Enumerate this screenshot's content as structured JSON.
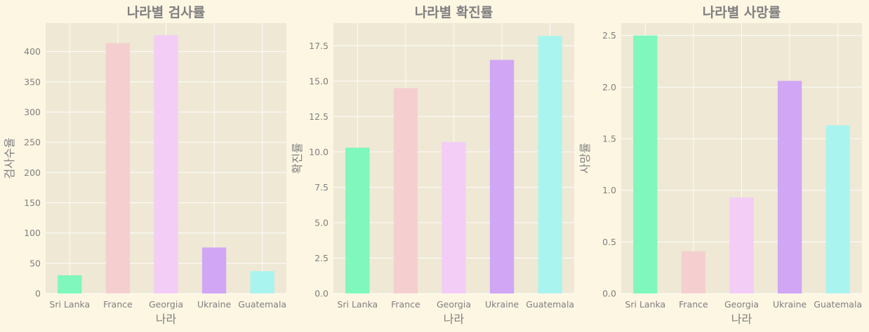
{
  "colors": {
    "figure_background": "#fdf6e3",
    "axes_background": "#eee8d5",
    "text": "#7f7f7f",
    "bars": [
      "#7ff7bd",
      "#f5cfcf",
      "#f3cdf5",
      "#d0a6f5",
      "#aaf4ef"
    ]
  },
  "chart_data": [
    {
      "type": "bar",
      "title": "나라별 검사률",
      "xlabel": "나라",
      "ylabel": "검사수율",
      "categories": [
        "Sri Lanka",
        "France",
        "Georgia",
        "Ukraine",
        "Guatemala"
      ],
      "values": [
        30,
        414,
        427,
        76,
        37
      ],
      "ylim": [
        0,
        447
      ],
      "yticks": [
        0,
        50,
        100,
        150,
        200,
        250,
        300,
        350,
        400
      ],
      "ytick_labels": [
        "0",
        "50",
        "100",
        "150",
        "200",
        "250",
        "300",
        "350",
        "400"
      ],
      "grid": true
    },
    {
      "type": "bar",
      "title": "나라별 확진률",
      "xlabel": "나라",
      "ylabel": "확진률",
      "categories": [
        "Sri Lanka",
        "France",
        "Georgia",
        "Ukraine",
        "Guatemala"
      ],
      "values": [
        10.3,
        14.5,
        10.7,
        16.5,
        18.2
      ],
      "ylim": [
        0,
        19.1
      ],
      "yticks": [
        0,
        2.5,
        5,
        7.5,
        10,
        12.5,
        15,
        17.5
      ],
      "ytick_labels": [
        "0.0",
        "2.5",
        "5.0",
        "7.5",
        "10.0",
        "12.5",
        "15.0",
        "17.5"
      ],
      "grid": true
    },
    {
      "type": "bar",
      "title": "나라별 사망률",
      "xlabel": "나라",
      "ylabel": "사망률",
      "categories": [
        "Sri Lanka",
        "France",
        "Georgia",
        "Ukraine",
        "Guatemala"
      ],
      "values": [
        2.5,
        0.41,
        0.93,
        2.06,
        1.63
      ],
      "ylim": [
        0,
        2.62
      ],
      "yticks": [
        0,
        0.5,
        1.0,
        1.5,
        2.0,
        2.5
      ],
      "ytick_labels": [
        "0.0",
        "0.5",
        "1.0",
        "1.5",
        "2.0",
        "2.5"
      ],
      "grid": true
    }
  ]
}
